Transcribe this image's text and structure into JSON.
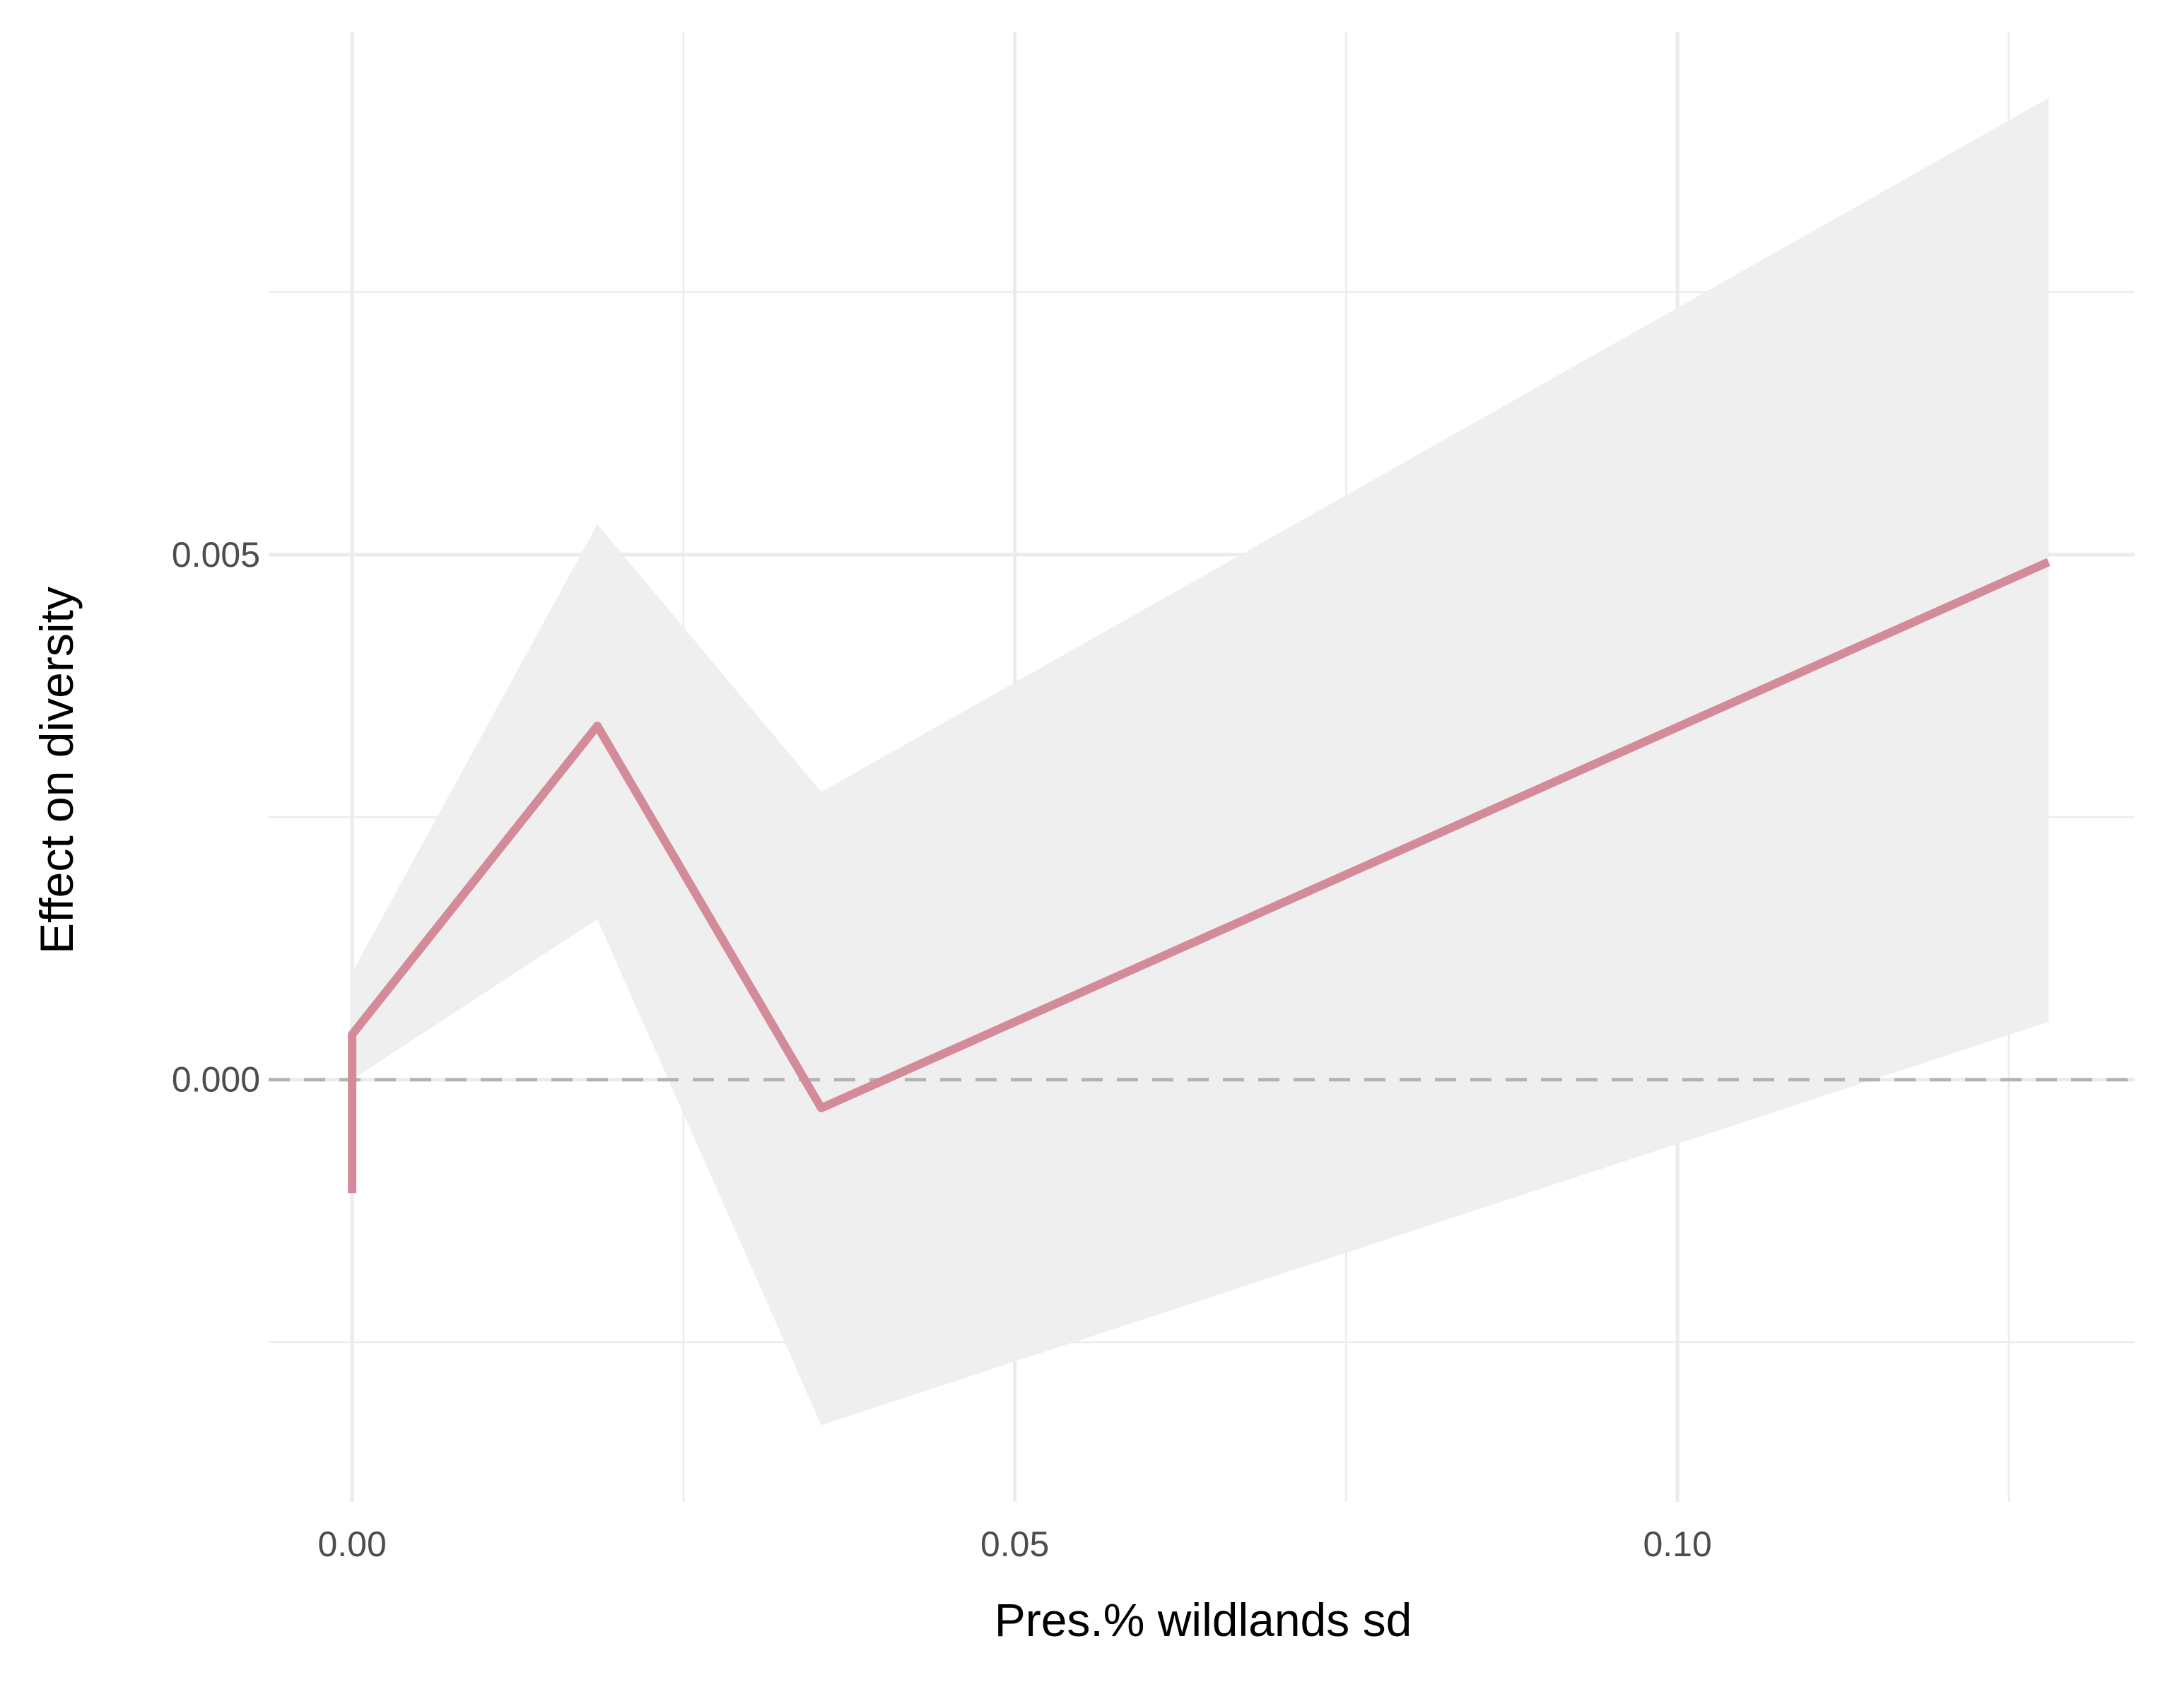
{
  "chart_data": {
    "type": "line",
    "xlabel": "Pres.% wildlands sd",
    "ylabel": "Effect on diversity",
    "xlim": [
      -0.0063,
      0.1345
    ],
    "ylim": [
      -0.00402,
      0.00998
    ],
    "x_ticks": [
      {
        "value": 0.0,
        "label": "0.00"
      },
      {
        "value": 0.05,
        "label": "0.05"
      },
      {
        "value": 0.1,
        "label": "0.10"
      }
    ],
    "x_minor_gridlines": [
      0.025,
      0.075,
      0.125
    ],
    "y_ticks": [
      {
        "value": 0.0,
        "label": "0.000"
      },
      {
        "value": 0.005,
        "label": "0.005"
      }
    ],
    "y_minor_gridlines": [
      -0.0025,
      0.0025,
      0.0075
    ],
    "grid": true,
    "reference_line": {
      "y": 0.0,
      "style": "dashed"
    },
    "series": [
      {
        "x": [
          0.0,
          0.0,
          0.0185,
          0.0354,
          0.128
        ],
        "y": [
          -0.00108,
          0.00043,
          0.00337,
          -0.00027,
          0.00493
        ],
        "lower": [
          0.0,
          0.0,
          0.00153,
          -0.00329,
          0.00055
        ],
        "upper": [
          0.00102,
          0.00102,
          0.00529,
          0.00274,
          0.00935
        ]
      }
    ],
    "colors": {
      "line": "#d48b99",
      "ribbon": "#efefef",
      "grid": "#ebebeb",
      "reference_line": "#b3b3b3"
    }
  }
}
